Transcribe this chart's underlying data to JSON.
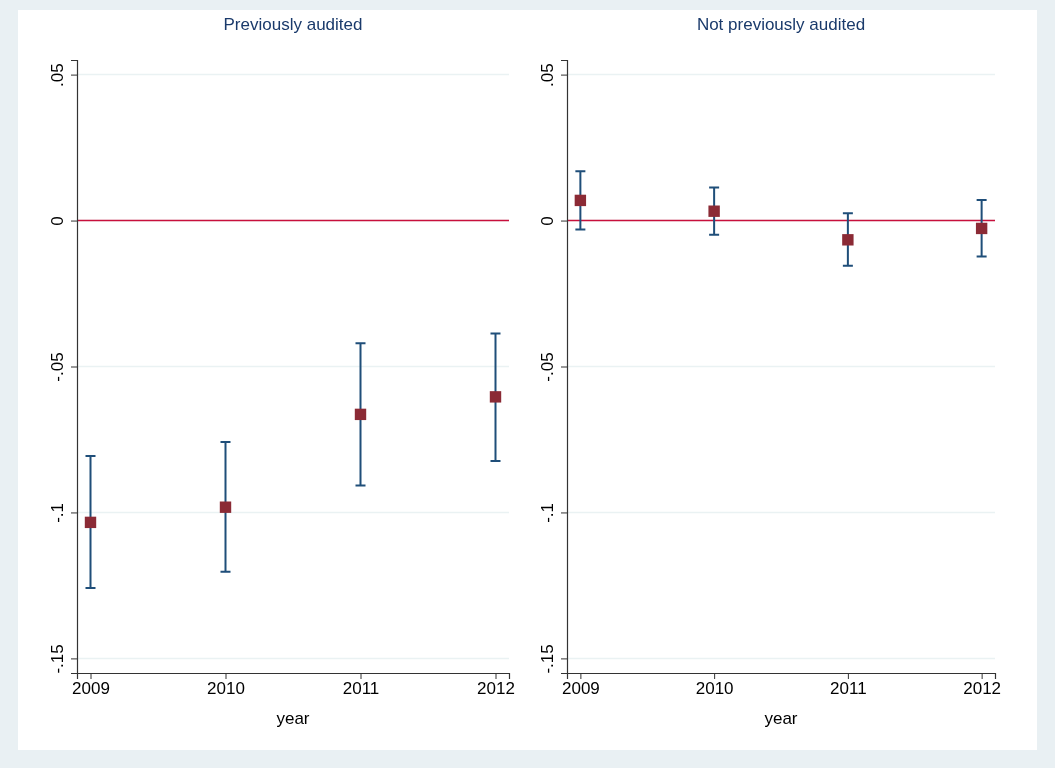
{
  "chart_data": [
    {
      "type": "scatter",
      "title": "Previously audited",
      "xlabel": "year",
      "x": [
        2009,
        2010,
        2011,
        2012
      ],
      "xlim": [
        2008.9,
        2012.1
      ],
      "xticks": [
        2009,
        2010,
        2011,
        2012
      ],
      "series": [
        {
          "color": "#8b2a35",
          "values": [
            -0.1034,
            -0.0982,
            -0.0664,
            -0.0604
          ],
          "errors": [
            [
              -0.1259,
              -0.0807
            ],
            [
              -0.1203,
              -0.0759
            ],
            [
              -0.0908,
              -0.042
            ],
            [
              -0.0824,
              -0.0387
            ]
          ]
        }
      ],
      "ylim": [
        -0.155,
        0.055
      ],
      "yticks": [
        {
          "value": -0.15,
          "label": "-.15"
        },
        {
          "value": -0.1,
          "label": "-.1"
        },
        {
          "value": -0.05,
          "label": "-.05"
        },
        0,
        {
          "value": 0.05,
          "label": ".05"
        }
      ],
      "grid": "y",
      "marker": "square",
      "ref_lines": [
        {
          "axis": "y",
          "value": 0,
          "color": "#c8103c"
        }
      ]
    },
    {
      "type": "scatter",
      "title": "Not previously audited",
      "xlabel": "year",
      "x": [
        2009,
        2010,
        2011,
        2012
      ],
      "xlim": [
        2008.9,
        2012.1
      ],
      "xticks": [
        2009,
        2010,
        2011,
        2012
      ],
      "series": [
        {
          "color": "#8b2a35",
          "values": [
            0.0069,
            0.0032,
            -0.0066,
            -0.0027
          ],
          "errors": [
            [
              -0.0031,
              0.0169
            ],
            [
              -0.0049,
              0.0113
            ],
            [
              -0.0155,
              0.0025
            ],
            [
              -0.0123,
              0.007
            ]
          ]
        }
      ],
      "ylim": [
        -0.155,
        0.055
      ],
      "yticks": [
        {
          "value": -0.15,
          "label": "-.15"
        },
        {
          "value": -0.1,
          "label": "-.1"
        },
        {
          "value": -0.05,
          "label": "-.05"
        },
        0,
        {
          "value": 0.05,
          "label": ".05"
        }
      ],
      "grid": "y",
      "marker": "square",
      "ref_lines": [
        {
          "axis": "y",
          "value": 0,
          "color": "#c8103c"
        }
      ]
    }
  ]
}
